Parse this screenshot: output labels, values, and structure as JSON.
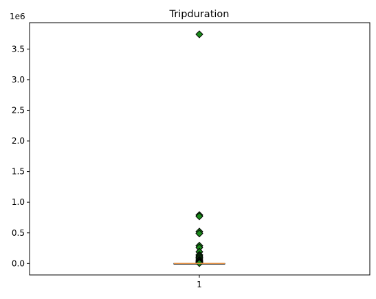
{
  "chart_data": {
    "type": "boxplot",
    "title": "Tripduration",
    "xlabel": "",
    "ylabel": "",
    "y_offset_label": "1e6",
    "y_scale": 1000000,
    "ylim": [
      -0.187,
      3.93
    ],
    "y_ticks": [
      0.0,
      0.5,
      1.0,
      1.5,
      2.0,
      2.5,
      3.0,
      3.5
    ],
    "y_tick_labels": [
      "0.0",
      "0.5",
      "1.0",
      "1.5",
      "2.0",
      "2.5",
      "3.0",
      "3.5"
    ],
    "x_tick_labels": [
      "1"
    ],
    "grid": false,
    "box": {
      "q1": 0.0004,
      "median": 0.0006,
      "q3": 0.0011,
      "whisker_low": 6e-05,
      "whisker_high": 0.0022
    },
    "outliers": [
      3.74,
      0.79,
      0.77,
      0.52,
      0.49,
      0.29,
      0.26,
      0.19,
      0.14,
      0.12,
      0.1,
      0.08,
      0.06,
      0.045,
      0.03,
      0.02,
      0.012,
      0.006
    ],
    "colors": {
      "box": "#000000",
      "median": "#e08a3c",
      "flier_fill": "#1a8a1a",
      "flier_edge": "#000000"
    }
  }
}
